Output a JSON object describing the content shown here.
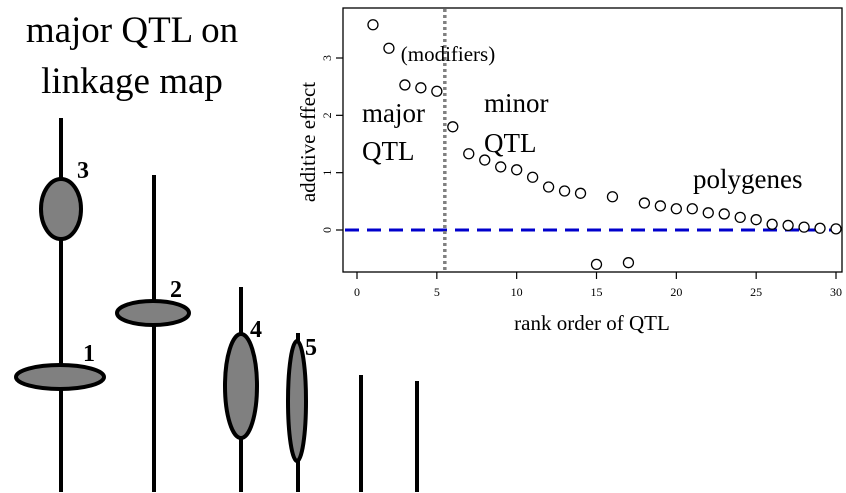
{
  "map_panel": {
    "title_line1": "major QTL on",
    "title_line2": "linkage map",
    "qtl_labels": [
      "3",
      "2",
      "1",
      "4",
      "5"
    ]
  },
  "colors": {
    "qtl_fill": "#808080",
    "dashed_zero_line": "#0000cc",
    "divider_line": "#808080"
  },
  "chart_data": {
    "type": "scatter",
    "title": "",
    "xlabel": "rank order of QTL",
    "ylabel": "additive effect",
    "xlim": [
      0,
      30.5
    ],
    "ylim": [
      -0.75,
      3.85
    ],
    "xticks": [
      0,
      5,
      10,
      15,
      20,
      25,
      30
    ],
    "yticks": [
      0,
      1,
      2,
      3
    ],
    "reference_lines": {
      "horizontal_zero": 0,
      "vertical_divider_x": 5.5
    },
    "annotations": [
      "(modifiers)",
      "major",
      "QTL",
      "minor",
      "QTL",
      "polygenes"
    ],
    "points": [
      {
        "x": 1,
        "y": 3.58
      },
      {
        "x": 2,
        "y": 3.17
      },
      {
        "x": 3,
        "y": 2.53
      },
      {
        "x": 4,
        "y": 2.48
      },
      {
        "x": 5,
        "y": 2.42
      },
      {
        "x": 6,
        "y": 1.8
      },
      {
        "x": 7,
        "y": 1.33
      },
      {
        "x": 8,
        "y": 1.22
      },
      {
        "x": 9,
        "y": 1.1
      },
      {
        "x": 10,
        "y": 1.05
      },
      {
        "x": 11,
        "y": 0.92
      },
      {
        "x": 12,
        "y": 0.75
      },
      {
        "x": 13,
        "y": 0.68
      },
      {
        "x": 14,
        "y": 0.64
      },
      {
        "x": 15,
        "y": -0.6
      },
      {
        "x": 16,
        "y": 0.58
      },
      {
        "x": 17,
        "y": -0.57
      },
      {
        "x": 18,
        "y": 0.47
      },
      {
        "x": 19,
        "y": 0.42
      },
      {
        "x": 20,
        "y": 0.37
      },
      {
        "x": 21,
        "y": 0.37
      },
      {
        "x": 22,
        "y": 0.3
      },
      {
        "x": 23,
        "y": 0.28
      },
      {
        "x": 24,
        "y": 0.22
      },
      {
        "x": 25,
        "y": 0.18
      },
      {
        "x": 26,
        "y": 0.1
      },
      {
        "x": 27,
        "y": 0.08
      },
      {
        "x": 28,
        "y": 0.05
      },
      {
        "x": 29,
        "y": 0.03
      },
      {
        "x": 30,
        "y": 0.02
      }
    ]
  }
}
